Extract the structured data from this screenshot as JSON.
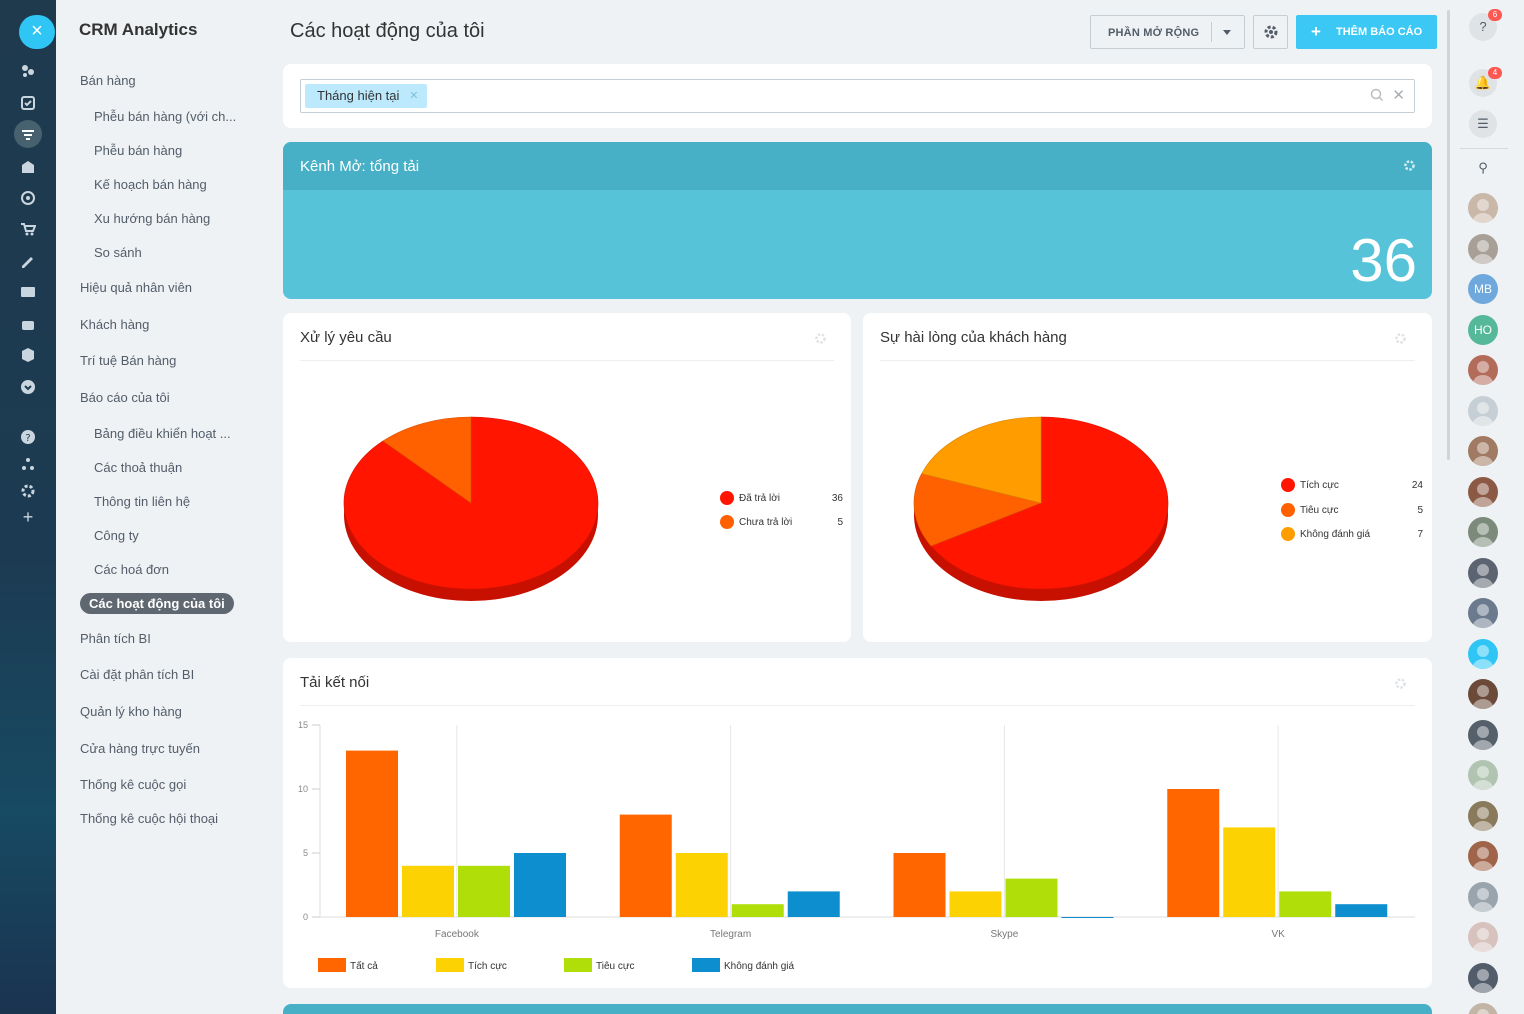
{
  "app": {
    "title": "CRM Analytics"
  },
  "menu": {
    "items": [
      {
        "label": "Bán hàng",
        "level": "top"
      },
      {
        "label": "Phễu bán hàng (với ch...",
        "level": "sub"
      },
      {
        "label": "Phễu bán hàng",
        "level": "sub"
      },
      {
        "label": "Kế hoạch bán hàng",
        "level": "sub"
      },
      {
        "label": "Xu hướng bán hàng",
        "level": "sub"
      },
      {
        "label": "So sánh",
        "level": "sub"
      },
      {
        "label": "Hiệu quả nhân viên",
        "level": "top"
      },
      {
        "label": "Khách hàng",
        "level": "top"
      },
      {
        "label": "Trí tuệ Bán hàng",
        "level": "top"
      },
      {
        "label": "Báo cáo của tôi",
        "level": "top"
      },
      {
        "label": "Bảng điều khiển hoạt ...",
        "level": "sub"
      },
      {
        "label": "Các thoả thuận",
        "level": "sub"
      },
      {
        "label": "Thông tin liên hệ",
        "level": "sub"
      },
      {
        "label": "Công ty",
        "level": "sub"
      },
      {
        "label": "Các hoá đơn",
        "level": "sub"
      },
      {
        "label": "Các hoạt động của tôi",
        "level": "active"
      },
      {
        "label": "Phân tích BI",
        "level": "top"
      },
      {
        "label": "Cài đặt phân tích BI",
        "level": "top"
      },
      {
        "label": "Quản lý kho hàng",
        "level": "top"
      },
      {
        "label": "Cửa hàng trực tuyến",
        "level": "top"
      },
      {
        "label": "Thống kê cuộc gọi",
        "level": "top"
      },
      {
        "label": "Thống kê cuộc hội thoại",
        "level": "top"
      }
    ]
  },
  "header": {
    "title": "Các hoạt động của tôi",
    "extension_button": "PHẦN MỞ RỘNG",
    "add_report_button": "THÊM BÁO CÁO"
  },
  "filter": {
    "chip": "Tháng hiện tại"
  },
  "kpi": {
    "title": "Kênh Mở: tổng tải",
    "value": "36",
    "color": "#56c3d9"
  },
  "widgets": {
    "requests": {
      "title": "Xử lý yêu cầu",
      "legend": [
        {
          "label": "Đã trả lời",
          "value": "36",
          "color": "#ff1500"
        },
        {
          "label": "Chưa trả lời",
          "value": "5",
          "color": "#ff6000"
        }
      ]
    },
    "satisfaction": {
      "title": "Sự hài lòng của khách hàng",
      "legend": [
        {
          "label": "Tích cực",
          "value": "24",
          "color": "#ff1500"
        },
        {
          "label": "Tiêu cực",
          "value": "5",
          "color": "#ff6000"
        },
        {
          "label": "Không đánh giá",
          "value": "7",
          "color": "#ff9c00"
        }
      ]
    },
    "load": {
      "title": "Tải kết nối"
    }
  },
  "chart_data": [
    {
      "type": "pie",
      "title": "Xử lý yêu cầu",
      "labels": [
        "Đã trả lời",
        "Chưa trả lời"
      ],
      "values": [
        36,
        5
      ],
      "colors": [
        "#ff1500",
        "#ff6000"
      ]
    },
    {
      "type": "pie",
      "title": "Sự hài lòng của khách hàng",
      "labels": [
        "Tích cực",
        "Tiêu cực",
        "Không đánh giá"
      ],
      "values": [
        24,
        5,
        7
      ],
      "colors": [
        "#ff1500",
        "#ff6000",
        "#ff9c00"
      ]
    },
    {
      "type": "bar",
      "title": "Tải kết nối",
      "categories": [
        "Facebook",
        "Telegram",
        "Skype",
        "VK"
      ],
      "series": [
        {
          "name": "Tất cả",
          "values": [
            13,
            8,
            5,
            10
          ],
          "color": "#ff6600"
        },
        {
          "name": "Tích cực",
          "values": [
            4,
            5,
            2,
            7
          ],
          "color": "#fcd202"
        },
        {
          "name": "Tiêu cực",
          "values": [
            4,
            1,
            3,
            2
          ],
          "color": "#b0de09"
        },
        {
          "name": "Không đánh giá",
          "values": [
            5,
            2,
            0,
            1
          ],
          "color": "#0d8ecf"
        }
      ],
      "ylim": [
        0,
        15
      ],
      "yticks": [
        "0",
        "5",
        "10",
        "15"
      ],
      "legend": "bottom-left"
    }
  ],
  "right_rail": {
    "help_badge": "6",
    "notif_badge": "4",
    "avatars": [
      {
        "initials": "",
        "color": "#c9b7a8"
      },
      {
        "initials": "",
        "color": "#a89f96"
      },
      {
        "initials": "MB",
        "color": "#6fa8dc"
      },
      {
        "initials": "HO",
        "color": "#55b899"
      },
      {
        "initials": "",
        "color": "#b36b5a"
      },
      {
        "initials": "",
        "color": "#c7cfd6"
      },
      {
        "initials": "",
        "color": "#a07a62"
      },
      {
        "initials": "",
        "color": "#8c5a44"
      },
      {
        "initials": "",
        "color": "#7b8a7a"
      },
      {
        "initials": "",
        "color": "#5b6470"
      },
      {
        "initials": "",
        "color": "#6c7a8e"
      },
      {
        "initials": "",
        "color": "#2fc6f6"
      },
      {
        "initials": "",
        "color": "#6b4a3a"
      },
      {
        "initials": "",
        "color": "#55606b"
      },
      {
        "initials": "",
        "color": "#b0c4b1"
      },
      {
        "initials": "",
        "color": "#8a7a5c"
      },
      {
        "initials": "",
        "color": "#a0644a"
      },
      {
        "initials": "",
        "color": "#9aa4ad"
      },
      {
        "initials": "",
        "color": "#d8c2bd"
      },
      {
        "initials": "",
        "color": "#525c6a"
      },
      {
        "initials": "",
        "color": "#c3b5a6"
      }
    ]
  }
}
